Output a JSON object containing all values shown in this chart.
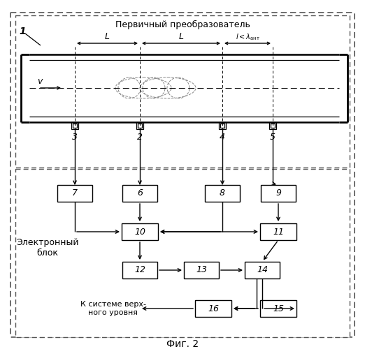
{
  "title": "Фиг. 2",
  "primary_label": "Первичный преобразователь",
  "electronic_label": "Электронный\nблок",
  "system_label": "К системе верх-\nного уровня",
  "v_label": "v",
  "bg_color": "#ffffff"
}
